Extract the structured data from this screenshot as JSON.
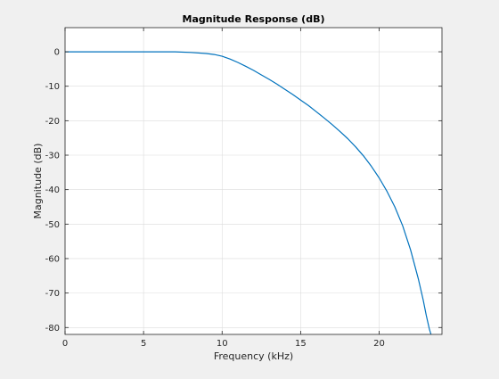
{
  "chart_data": {
    "type": "line",
    "title": "Magnitude Response (dB)",
    "xlabel": "Frequency (kHz)",
    "ylabel": "Magnitude (dB)",
    "xlim": [
      0,
      24
    ],
    "ylim": [
      -82,
      7
    ],
    "xticks": [
      0,
      5,
      10,
      15,
      20
    ],
    "yticks": [
      0,
      -10,
      -20,
      -30,
      -40,
      -50,
      -60,
      -70,
      -80
    ],
    "grid": true,
    "legend": "none",
    "series": [
      {
        "color": "#0072bd",
        "x": [
          0,
          2,
          4,
          6,
          7,
          8,
          9,
          9.5,
          10,
          10.5,
          11,
          11.5,
          12,
          12.5,
          13,
          13.5,
          14,
          14.5,
          15,
          15.5,
          16,
          16.5,
          17,
          17.5,
          18,
          18.5,
          19,
          19.5,
          20,
          20.5,
          21,
          21.5,
          22,
          22.5,
          22.8,
          23,
          23.2,
          23.3
        ],
        "y": [
          0,
          0,
          0,
          0,
          0,
          -0.2,
          -0.5,
          -0.8,
          -1.3,
          -2.1,
          -3.1,
          -4.2,
          -5.4,
          -6.7,
          -8.0,
          -9.4,
          -10.9,
          -12.4,
          -14.0,
          -15.6,
          -17.4,
          -19.2,
          -21.1,
          -23.1,
          -25.2,
          -27.6,
          -30.2,
          -33.2,
          -36.6,
          -40.5,
          -45.0,
          -50.5,
          -57.5,
          -66.0,
          -72.0,
          -76.5,
          -80.5,
          -82.0
        ]
      }
    ]
  }
}
